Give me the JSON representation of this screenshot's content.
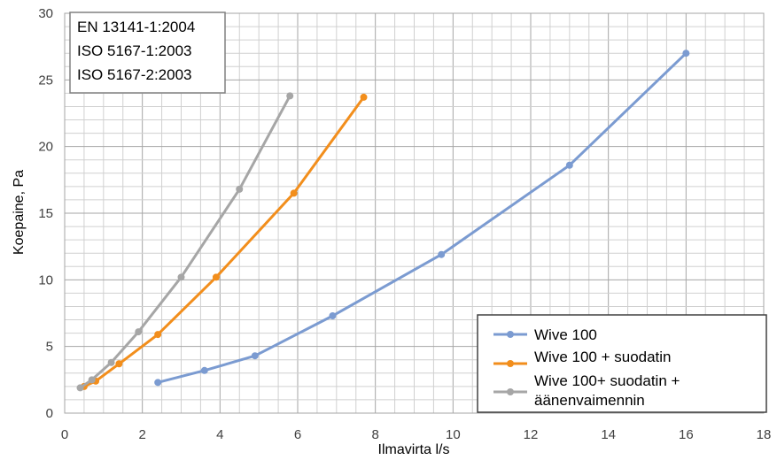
{
  "chart_data": {
    "type": "line",
    "title": "",
    "xlabel": "Ilmavirta l/s",
    "ylabel": "Koepaine, Pa",
    "xlim": [
      0,
      18
    ],
    "ylim": [
      0,
      30
    ],
    "x_ticks": [
      "0",
      "2",
      "4",
      "6",
      "8",
      "10",
      "12",
      "14",
      "16",
      "18"
    ],
    "y_ticks": [
      "0",
      "5",
      "10",
      "15",
      "20",
      "25",
      "30"
    ],
    "grid": true,
    "legend_position": "bottom-right",
    "standards": [
      "EN 13141-1:2004",
      "ISO 5167-1:2003",
      "ISO 5167-2:2003"
    ],
    "series": [
      {
        "name": "Wive 100",
        "color": "#7b9bd1",
        "points": [
          [
            2.4,
            2.3
          ],
          [
            3.6,
            3.2
          ],
          [
            4.9,
            4.3
          ],
          [
            6.9,
            7.3
          ],
          [
            9.7,
            11.9
          ],
          [
            13.0,
            18.6
          ],
          [
            16.0,
            27.0
          ]
        ]
      },
      {
        "name": "Wive 100 + suodatin",
        "color": "#f28e1c",
        "points": [
          [
            0.5,
            2.0
          ],
          [
            0.8,
            2.4
          ],
          [
            1.4,
            3.7
          ],
          [
            2.4,
            5.9
          ],
          [
            3.9,
            10.2
          ],
          [
            5.9,
            16.5
          ],
          [
            7.7,
            23.7
          ]
        ]
      },
      {
        "name": "Wive 100+ suodatin + äänenvaimennin",
        "legend_lines": [
          "Wive 100+ suodatin +",
          "äänenvaimennin"
        ],
        "color": "#a6a6a6",
        "points": [
          [
            0.4,
            1.9
          ],
          [
            0.7,
            2.5
          ],
          [
            1.2,
            3.8
          ],
          [
            1.9,
            6.1
          ],
          [
            3.0,
            10.2
          ],
          [
            4.5,
            16.8
          ],
          [
            5.8,
            23.8
          ]
        ]
      }
    ]
  }
}
